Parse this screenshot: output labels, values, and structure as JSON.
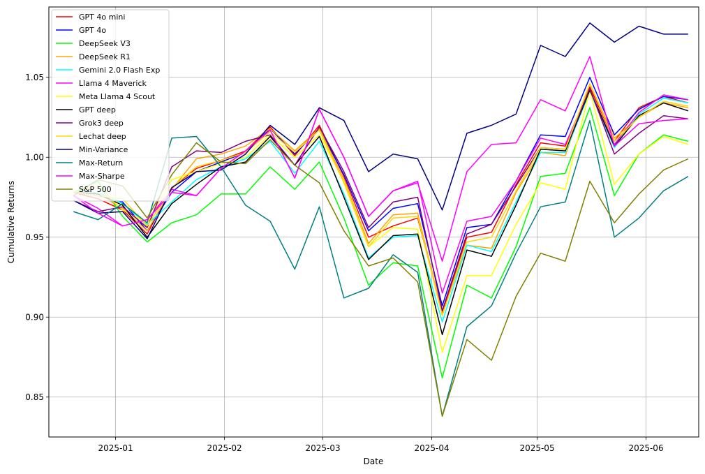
{
  "chart_data": {
    "type": "line",
    "title": "",
    "xlabel": "Date",
    "ylabel": "Cumulative Returns",
    "xlim": [
      "2024-12-13",
      "2025-06-16"
    ],
    "ylim": [
      0.825,
      1.094
    ],
    "grid": true,
    "legend": "upper-left",
    "x_ticks": [
      "2025-01-01",
      "2025-02-01",
      "2025-03-01",
      "2025-04-01",
      "2025-05-01",
      "2025-06-01"
    ],
    "x_tick_labels": [
      "2025-01",
      "2025-02",
      "2025-03",
      "2025-04",
      "2025-05",
      "2025-06"
    ],
    "y_ticks": [
      0.85,
      0.9,
      0.95,
      1.0,
      1.05
    ],
    "y_tick_labels": [
      "0.85",
      "0.90",
      "0.95",
      "1.00",
      "1.05"
    ],
    "x": [
      "2024-12-20",
      "2024-12-27",
      "2025-01-03",
      "2025-01-10",
      "2025-01-17",
      "2025-01-24",
      "2025-01-31",
      "2025-02-07",
      "2025-02-14",
      "2025-02-21",
      "2025-02-28",
      "2025-03-07",
      "2025-03-14",
      "2025-03-21",
      "2025-03-28",
      "2025-04-04",
      "2025-04-11",
      "2025-04-18",
      "2025-04-25",
      "2025-05-02",
      "2025-05-09",
      "2025-05-16",
      "2025-05-23",
      "2025-05-30",
      "2025-06-06",
      "2025-06-13"
    ],
    "series": [
      {
        "name": "GPT 4o mini",
        "color": "#ff0000",
        "values": [
          0.978,
          0.974,
          0.967,
          0.952,
          0.981,
          0.993,
          0.998,
          1.004,
          1.019,
          1.001,
          1.02,
          0.988,
          0.95,
          0.957,
          0.962,
          0.903,
          0.95,
          0.953,
          0.983,
          1.009,
          1.007,
          1.044,
          1.01,
          1.031,
          1.038,
          1.034
        ]
      },
      {
        "name": "GPT 4o",
        "color": "#0000ff",
        "values": [
          0.978,
          0.976,
          0.972,
          0.954,
          0.978,
          0.991,
          0.997,
          1.003,
          1.018,
          1.002,
          1.018,
          0.989,
          0.954,
          0.968,
          0.971,
          0.907,
          0.956,
          0.958,
          0.985,
          1.014,
          1.013,
          1.05,
          1.014,
          1.03,
          1.038,
          1.036
        ]
      },
      {
        "name": "DeepSeek V3",
        "color": "#00ff00",
        "values": [
          0.978,
          0.985,
          0.963,
          0.947,
          0.959,
          0.964,
          0.977,
          0.977,
          0.994,
          0.98,
          0.997,
          0.962,
          0.92,
          0.934,
          0.932,
          0.862,
          0.92,
          0.912,
          0.944,
          0.988,
          0.99,
          1.031,
          0.976,
          1.002,
          1.014,
          1.01
        ]
      },
      {
        "name": "DeepSeek R1",
        "color": "#ffa500",
        "values": [
          0.978,
          0.977,
          0.968,
          0.954,
          0.98,
          0.999,
          1.002,
          1.007,
          1.018,
          1.004,
          1.018,
          0.986,
          0.946,
          0.964,
          0.965,
          0.902,
          0.945,
          0.943,
          0.978,
          1.003,
          1.001,
          1.046,
          1.012,
          1.025,
          1.034,
          1.031
        ]
      },
      {
        "name": "Gemini 2.0 Flash Exp",
        "color": "#00ffff",
        "values": [
          0.978,
          0.978,
          0.971,
          0.958,
          0.972,
          0.986,
          0.994,
          0.999,
          1.01,
          0.99,
          1.01,
          0.977,
          0.937,
          0.95,
          0.951,
          0.897,
          0.945,
          0.941,
          0.972,
          1.003,
          1.003,
          1.041,
          1.006,
          1.027,
          1.037,
          1.034
        ]
      },
      {
        "name": "Llama 4 Maverick",
        "color": "#ff00ff",
        "values": [
          0.976,
          0.968,
          0.957,
          0.961,
          0.98,
          0.976,
          0.993,
          1.004,
          1.017,
          0.987,
          1.03,
          1.0,
          0.963,
          0.979,
          0.985,
          0.915,
          0.96,
          0.963,
          0.985,
          1.012,
          1.008,
          1.042,
          1.008,
          1.028,
          1.039,
          1.036
        ]
      },
      {
        "name": "Meta Llama 4 Scout",
        "color": "#ffff00",
        "values": [
          0.978,
          0.982,
          0.967,
          0.959,
          0.986,
          0.991,
          0.996,
          1.0,
          1.014,
          1.0,
          1.014,
          0.985,
          0.944,
          0.956,
          0.955,
          0.878,
          0.926,
          0.926,
          0.958,
          0.984,
          0.98,
          1.042,
          0.983,
          1.002,
          1.013,
          1.008
        ]
      },
      {
        "name": "GPT deep",
        "color": "#000000",
        "values": [
          0.978,
          0.977,
          0.97,
          0.95,
          0.971,
          0.983,
          0.994,
          0.997,
          1.013,
          0.995,
          1.013,
          0.975,
          0.936,
          0.951,
          0.952,
          0.889,
          0.942,
          0.938,
          0.97,
          1.005,
          1.004,
          1.042,
          1.007,
          1.026,
          1.034,
          1.029
        ]
      },
      {
        "name": "Grok3 deep",
        "color": "#800080",
        "values": [
          0.973,
          0.966,
          0.969,
          0.956,
          0.994,
          1.004,
          1.003,
          1.01,
          1.014,
          0.995,
          1.019,
          0.991,
          0.956,
          0.972,
          0.975,
          0.904,
          0.952,
          0.958,
          0.982,
          1.006,
          1.005,
          1.043,
          1.002,
          1.015,
          1.026,
          1.024
        ]
      },
      {
        "name": "Lechat deep",
        "color": "#ffd700",
        "values": [
          0.978,
          0.976,
          0.974,
          0.957,
          0.981,
          0.994,
          0.998,
          1.003,
          1.016,
          1.003,
          1.017,
          0.984,
          0.944,
          0.962,
          0.963,
          0.901,
          0.947,
          0.95,
          0.979,
          1.006,
          1.005,
          1.046,
          1.01,
          1.025,
          1.035,
          1.032
        ]
      },
      {
        "name": "Min-Variance",
        "color": "#000080",
        "values": [
          0.973,
          0.965,
          0.966,
          0.949,
          0.981,
          0.991,
          0.992,
          1.002,
          1.02,
          1.008,
          1.031,
          1.023,
          0.991,
          1.002,
          0.999,
          0.967,
          1.015,
          1.02,
          1.027,
          1.07,
          1.063,
          1.084,
          1.072,
          1.082,
          1.077,
          1.077
        ]
      },
      {
        "name": "Max-Return",
        "color": "#008080",
        "values": [
          0.966,
          0.961,
          0.971,
          0.959,
          1.012,
          1.013,
          0.994,
          0.97,
          0.96,
          0.93,
          0.969,
          0.912,
          0.918,
          0.939,
          0.928,
          0.838,
          0.894,
          0.907,
          0.94,
          0.969,
          0.972,
          1.023,
          0.95,
          0.962,
          0.979,
          0.988
        ]
      },
      {
        "name": "Max-Sharpe",
        "color": "#ff00ff",
        "values": [
          0.976,
          0.965,
          0.957,
          0.961,
          0.978,
          0.976,
          0.993,
          1.004,
          1.017,
          0.987,
          1.03,
          1.0,
          0.963,
          0.979,
          0.984,
          0.935,
          0.991,
          1.008,
          1.009,
          1.036,
          1.029,
          1.063,
          1.007,
          1.021,
          1.023,
          1.024
        ]
      },
      {
        "name": "S&P 500",
        "color": "#808000",
        "values": [
          0.976,
          0.986,
          0.982,
          0.962,
          0.989,
          1.009,
          0.997,
          0.996,
          1.011,
          0.995,
          0.984,
          0.954,
          0.932,
          0.937,
          0.922,
          0.838,
          0.886,
          0.873,
          0.913,
          0.94,
          0.935,
          0.985,
          0.959,
          0.977,
          0.992,
          0.999
        ]
      }
    ]
  }
}
